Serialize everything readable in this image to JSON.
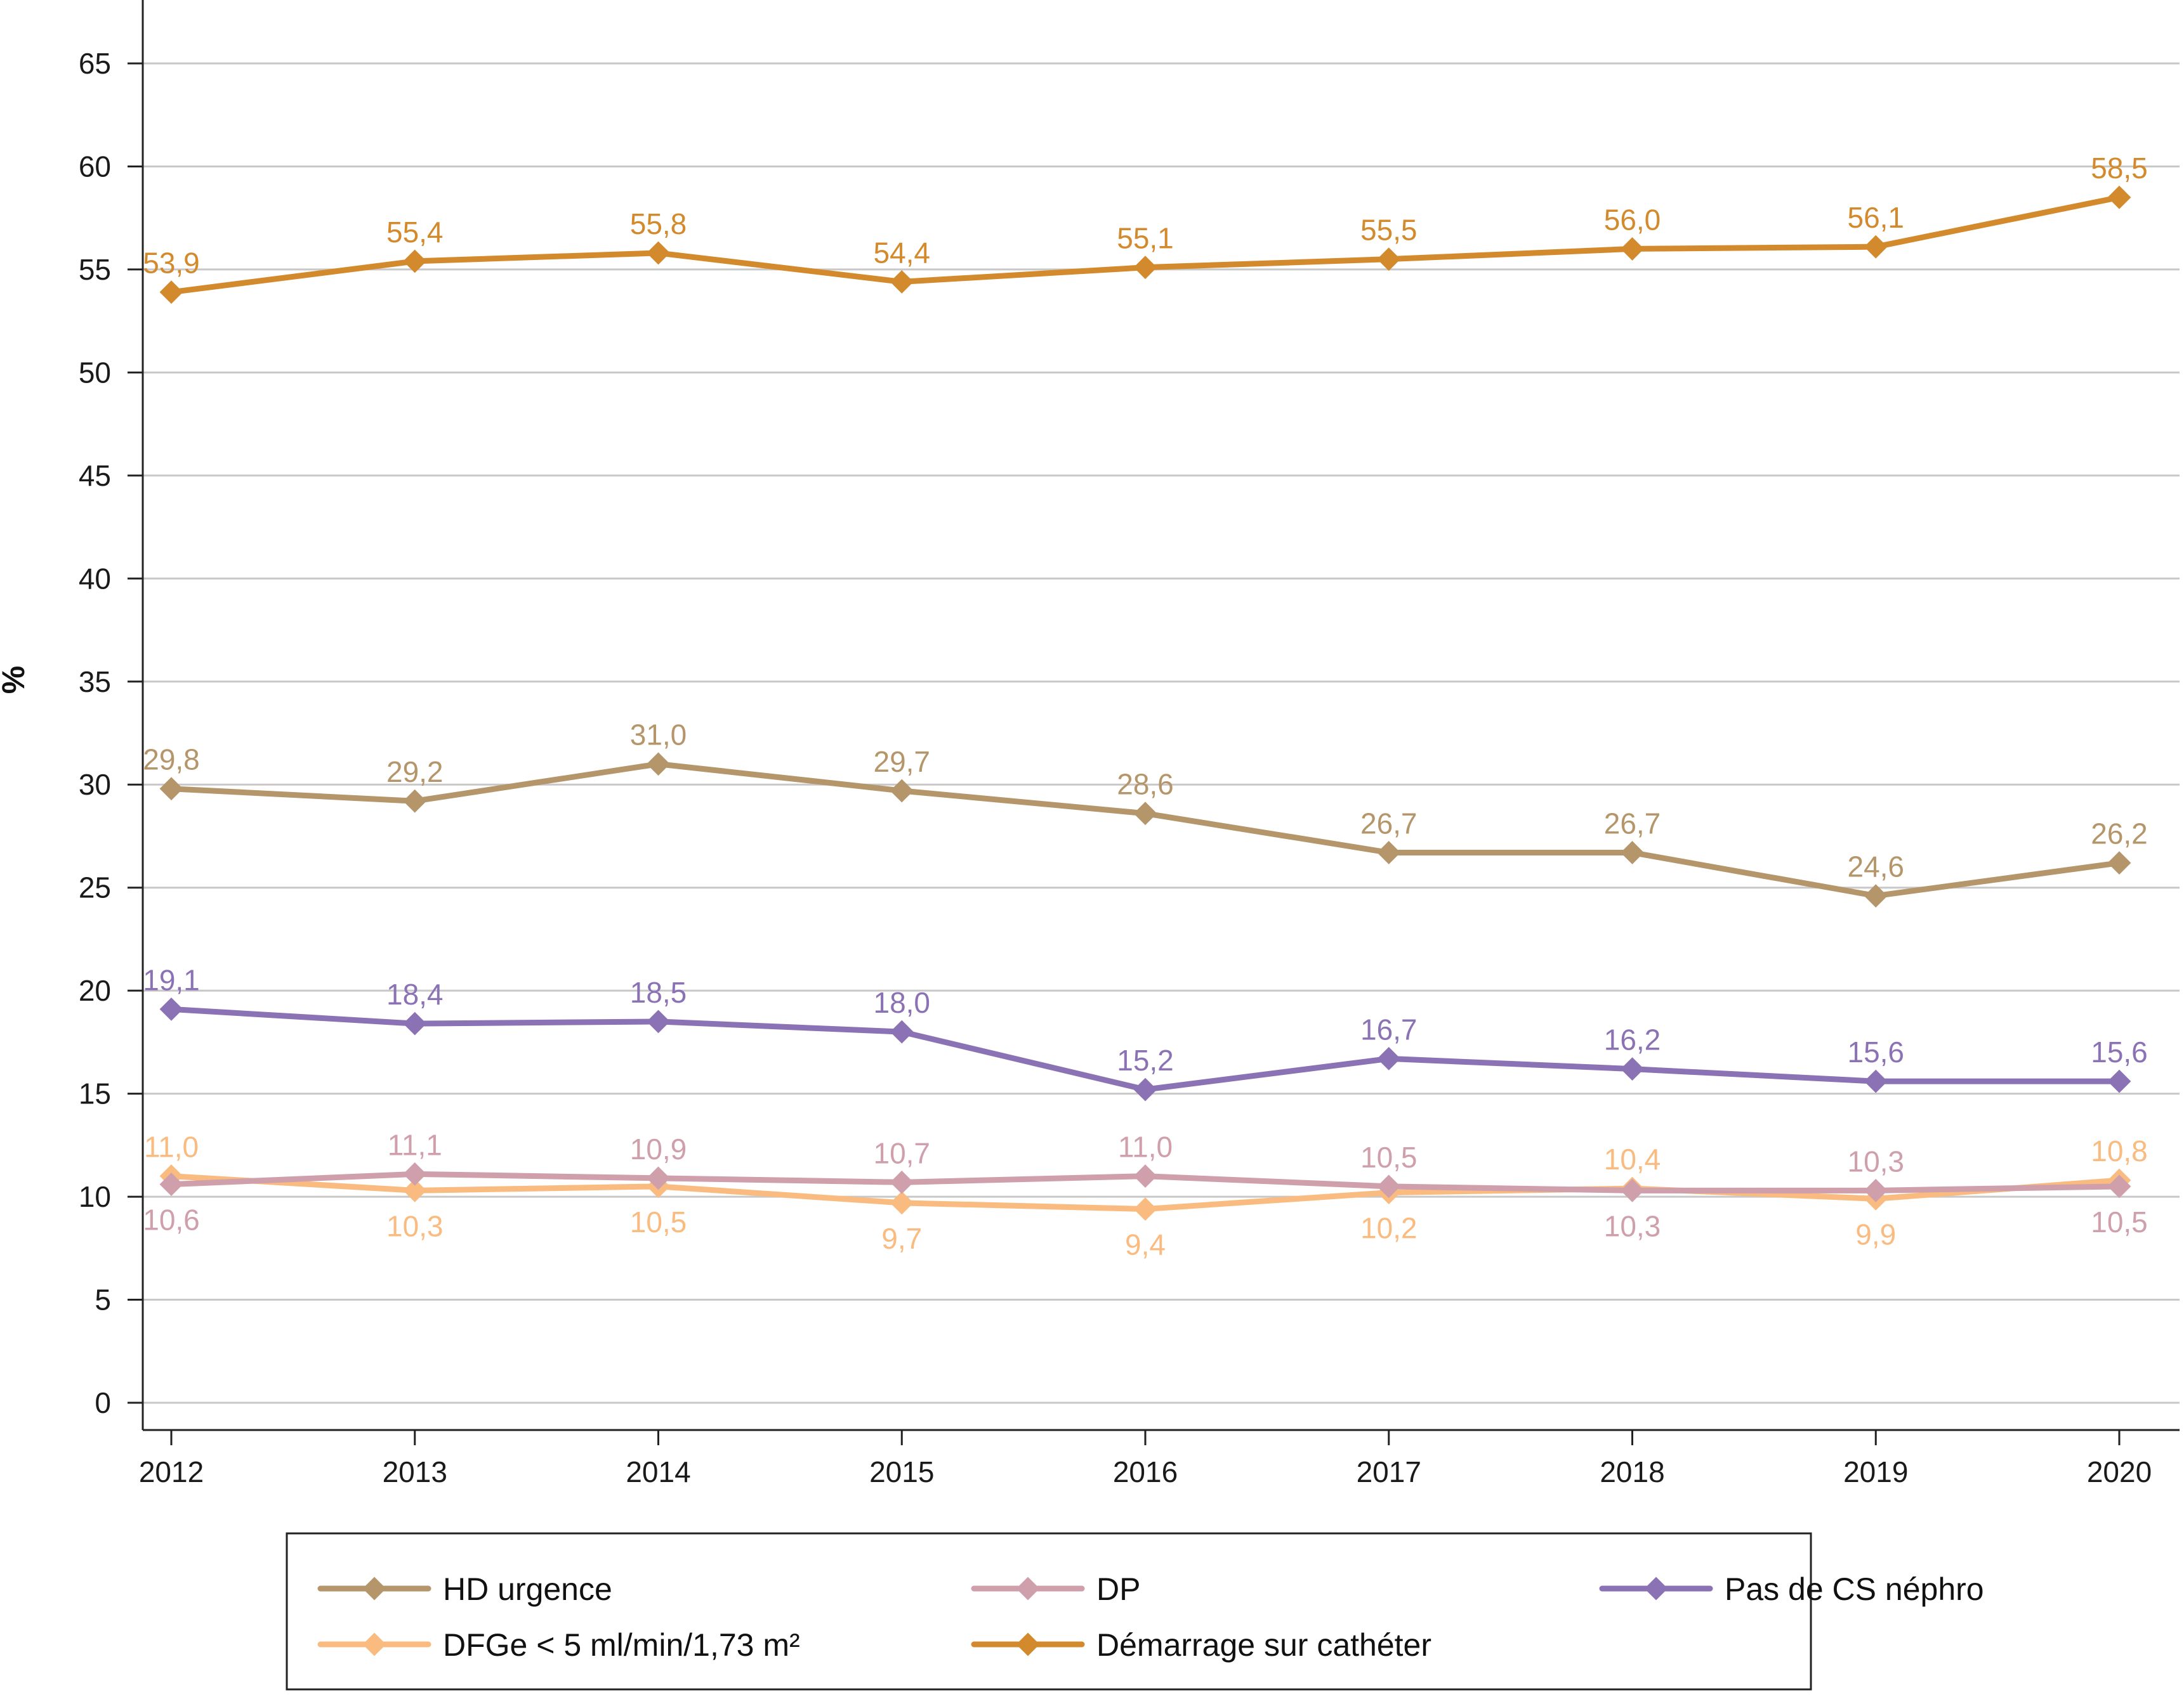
{
  "chart_data": {
    "type": "line",
    "title": "",
    "xlabel": "",
    "ylabel": "%",
    "ylim": [
      0,
      65
    ],
    "yticks": [
      0,
      5,
      10,
      15,
      20,
      25,
      30,
      35,
      40,
      45,
      50,
      55,
      60,
      65
    ],
    "grid": true,
    "legend_position": "bottom",
    "x": [
      "2012",
      "2013",
      "2014",
      "2015",
      "2016",
      "2017",
      "2018",
      "2019",
      "2020"
    ],
    "series": [
      {
        "name": "HD urgence",
        "color": "#b5956a",
        "values": [
          29.8,
          29.2,
          31.0,
          29.7,
          28.6,
          26.7,
          26.7,
          24.6,
          26.2
        ],
        "labels": [
          "29,8",
          "29,2",
          "31,0",
          "29,7",
          "28,6",
          "26,7",
          "26,7",
          "24,6",
          "26,2"
        ],
        "label_pos": [
          "above",
          "above",
          "above",
          "above",
          "above",
          "above",
          "above",
          "above",
          "above"
        ]
      },
      {
        "name": "DP",
        "color": "#cf9fab",
        "values": [
          10.6,
          11.1,
          10.9,
          10.7,
          11.0,
          10.5,
          10.3,
          10.3,
          10.5
        ],
        "labels": [
          "10,6",
          "11,1",
          "10,9",
          "10,7",
          "11,0",
          "10,5",
          "10,3",
          "10,3",
          "10,5"
        ],
        "label_pos": [
          "below",
          "above",
          "above",
          "above",
          "above",
          "above",
          "below",
          "above",
          "below"
        ]
      },
      {
        "name": "Pas de CS néphro",
        "color": "#8b72b5",
        "values": [
          19.1,
          18.4,
          18.5,
          18.0,
          15.2,
          16.7,
          16.2,
          15.6,
          15.6
        ],
        "labels": [
          "19,1",
          "18,4",
          "18,5",
          "18,0",
          "15,2",
          "16,7",
          "16,2",
          "15,6",
          "15,6"
        ],
        "label_pos": [
          "above",
          "above",
          "above",
          "above",
          "above",
          "above",
          "above",
          "above",
          "above"
        ]
      },
      {
        "name": "DFGe < 5 ml/min/1,73 m²",
        "color": "#f9bb80",
        "values": [
          11.0,
          10.3,
          10.5,
          9.7,
          9.4,
          10.2,
          10.4,
          9.9,
          10.8
        ],
        "labels": [
          "11,0",
          "10,3",
          "10,5",
          "9,7",
          "9,4",
          "10,2",
          "10,4",
          "9,9",
          "10,8"
        ],
        "label_pos": [
          "above",
          "below",
          "below",
          "below",
          "below",
          "below",
          "above",
          "below",
          "above"
        ]
      },
      {
        "name": "Démarrage sur cathéter",
        "color": "#d38a2c",
        "values": [
          53.9,
          55.4,
          55.8,
          54.4,
          55.1,
          55.5,
          56.0,
          56.1,
          58.5
        ],
        "labels": [
          "53,9",
          "55,4",
          "55,8",
          "54,4",
          "55,1",
          "55,5",
          "56,0",
          "56,1",
          "58,5"
        ],
        "label_pos": [
          "above",
          "above",
          "above",
          "above",
          "above",
          "above",
          "above",
          "above",
          "above"
        ]
      }
    ],
    "legend": [
      "HD urgence",
      "DP",
      "Pas de CS néphro",
      "DFGe < 5 ml/min/1,73 m²",
      "Démarrage sur cathéter"
    ]
  }
}
